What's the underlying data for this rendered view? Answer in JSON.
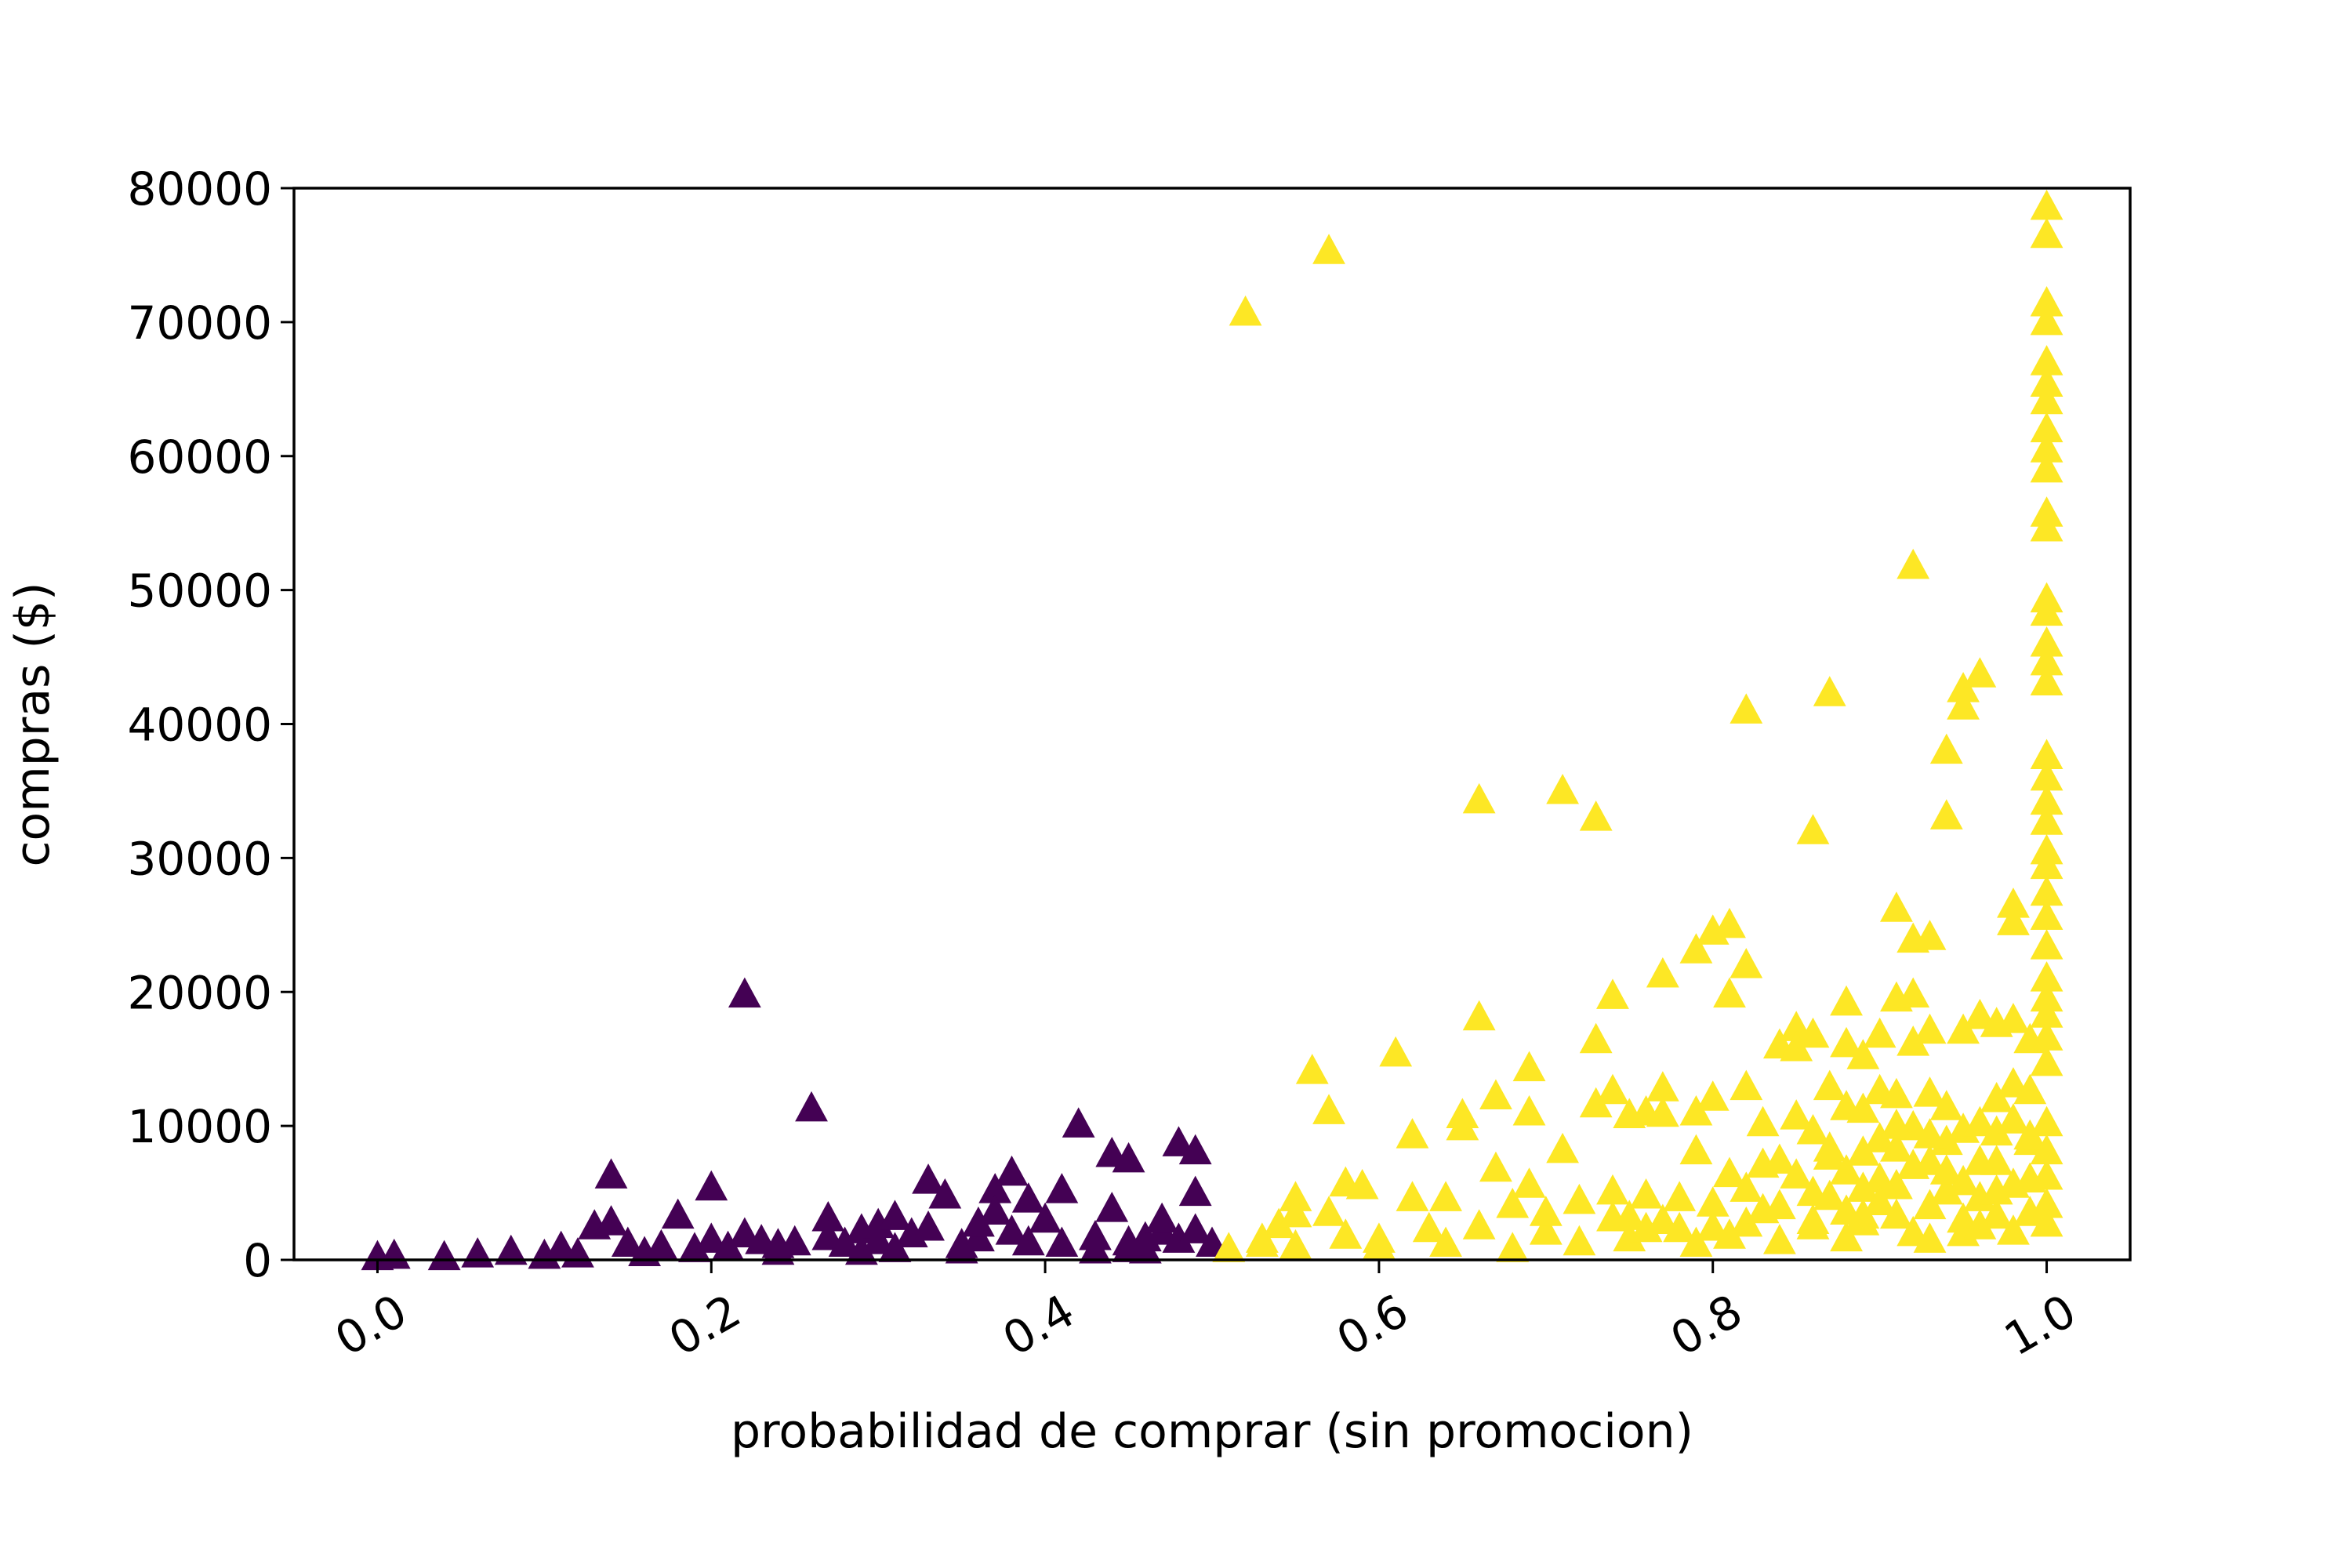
{
  "chart_data": {
    "type": "scatter",
    "title": "",
    "xlabel": "probabilidad de comprar (sin promocion)",
    "ylabel": "compras ($)",
    "xlim": [
      -0.05,
      1.05
    ],
    "ylim": [
      0,
      80000
    ],
    "xticks": [
      "0.0",
      "0.2",
      "0.4",
      "0.6",
      "0.8",
      "1.0"
    ],
    "yticks": [
      "0",
      "10000",
      "20000",
      "30000",
      "40000",
      "50000",
      "60000",
      "70000",
      "80000"
    ],
    "grid": false,
    "legend": "none",
    "marker": "triangle",
    "colors": {
      "low": "#440154",
      "high": "#fde725"
    },
    "series": [
      {
        "color": "#440154",
        "points": [
          [
            0.0,
            200
          ],
          [
            0.01,
            300
          ],
          [
            0.04,
            200
          ],
          [
            0.06,
            400
          ],
          [
            0.08,
            600
          ],
          [
            0.1,
            300
          ],
          [
            0.11,
            900
          ],
          [
            0.12,
            400
          ],
          [
            0.13,
            2500
          ],
          [
            0.14,
            6300
          ],
          [
            0.14,
            2800
          ],
          [
            0.15,
            1200
          ],
          [
            0.16,
            500
          ],
          [
            0.17,
            1000
          ],
          [
            0.18,
            3300
          ],
          [
            0.19,
            800
          ],
          [
            0.2,
            5400
          ],
          [
            0.2,
            1500
          ],
          [
            0.21,
            900
          ],
          [
            0.22,
            19800
          ],
          [
            0.22,
            1900
          ],
          [
            0.23,
            1400
          ],
          [
            0.24,
            1100
          ],
          [
            0.25,
            1300
          ],
          [
            0.26,
            11300
          ],
          [
            0.27,
            3100
          ],
          [
            0.27,
            1700
          ],
          [
            0.28,
            1200
          ],
          [
            0.29,
            2200
          ],
          [
            0.3,
            2600
          ],
          [
            0.31,
            3200
          ],
          [
            0.32,
            1900
          ],
          [
            0.33,
            5900
          ],
          [
            0.33,
            2400
          ],
          [
            0.34,
            4800
          ],
          [
            0.35,
            1100
          ],
          [
            0.36,
            1600
          ],
          [
            0.37,
            5200
          ],
          [
            0.37,
            3600
          ],
          [
            0.38,
            6500
          ],
          [
            0.38,
            2100
          ],
          [
            0.39,
            4500
          ],
          [
            0.4,
            3000
          ],
          [
            0.41,
            5200
          ],
          [
            0.41,
            1200
          ],
          [
            0.42,
            10100
          ],
          [
            0.43,
            700
          ],
          [
            0.44,
            7900
          ],
          [
            0.44,
            3800
          ],
          [
            0.45,
            7500
          ],
          [
            0.45,
            800
          ],
          [
            0.46,
            1600
          ],
          [
            0.47,
            2100
          ],
          [
            0.47,
            3000
          ],
          [
            0.48,
            8700
          ],
          [
            0.48,
            1500
          ],
          [
            0.49,
            8100
          ],
          [
            0.49,
            5000
          ],
          [
            0.49,
            2200
          ],
          [
            0.5,
            1200
          ],
          [
            0.35,
            700
          ],
          [
            0.31,
            800
          ],
          [
            0.29,
            600
          ],
          [
            0.39,
            1300
          ],
          [
            0.43,
            1700
          ],
          [
            0.46,
            700
          ],
          [
            0.24,
            600
          ],
          [
            0.3,
            1400
          ],
          [
            0.36,
            2700
          ],
          [
            0.45,
            1300
          ]
        ]
      },
      {
        "color": "#fde725",
        "points": [
          [
            0.52,
            70700
          ],
          [
            0.57,
            75300
          ],
          [
            0.51,
            800
          ],
          [
            0.53,
            1500
          ],
          [
            0.54,
            2600
          ],
          [
            0.55,
            4600
          ],
          [
            0.55,
            1000
          ],
          [
            0.56,
            14100
          ],
          [
            0.57,
            11100
          ],
          [
            0.57,
            3500
          ],
          [
            0.58,
            5700
          ],
          [
            0.59,
            5500
          ],
          [
            0.6,
            1500
          ],
          [
            0.61,
            15400
          ],
          [
            0.62,
            9300
          ],
          [
            0.62,
            4600
          ],
          [
            0.63,
            2300
          ],
          [
            0.64,
            4600
          ],
          [
            0.65,
            10800
          ],
          [
            0.65,
            9900
          ],
          [
            0.66,
            34300
          ],
          [
            0.66,
            18100
          ],
          [
            0.67,
            12200
          ],
          [
            0.67,
            6800
          ],
          [
            0.68,
            4100
          ],
          [
            0.69,
            14300
          ],
          [
            0.69,
            11000
          ],
          [
            0.69,
            5600
          ],
          [
            0.7,
            2100
          ],
          [
            0.71,
            35000
          ],
          [
            0.71,
            8200
          ],
          [
            0.72,
            4400
          ],
          [
            0.73,
            33000
          ],
          [
            0.73,
            16400
          ],
          [
            0.73,
            11600
          ],
          [
            0.74,
            19700
          ],
          [
            0.74,
            12600
          ],
          [
            0.74,
            5100
          ],
          [
            0.75,
            10800
          ],
          [
            0.75,
            3200
          ],
          [
            0.76,
            11000
          ],
          [
            0.76,
            4800
          ],
          [
            0.77,
            21300
          ],
          [
            0.77,
            12800
          ],
          [
            0.77,
            10900
          ],
          [
            0.78,
            2300
          ],
          [
            0.79,
            23100
          ],
          [
            0.79,
            11000
          ],
          [
            0.79,
            8100
          ],
          [
            0.8,
            24500
          ],
          [
            0.8,
            12100
          ],
          [
            0.8,
            4200
          ],
          [
            0.81,
            25000
          ],
          [
            0.81,
            19800
          ],
          [
            0.81,
            6400
          ],
          [
            0.82,
            41000
          ],
          [
            0.82,
            22000
          ],
          [
            0.82,
            12900
          ],
          [
            0.82,
            2700
          ],
          [
            0.83,
            10200
          ],
          [
            0.83,
            7100
          ],
          [
            0.84,
            16000
          ],
          [
            0.84,
            4000
          ],
          [
            0.85,
            17300
          ],
          [
            0.85,
            15800
          ],
          [
            0.85,
            10700
          ],
          [
            0.86,
            32000
          ],
          [
            0.86,
            16800
          ],
          [
            0.86,
            9600
          ],
          [
            0.86,
            5000
          ],
          [
            0.87,
            42300
          ],
          [
            0.87,
            12900
          ],
          [
            0.87,
            8300
          ],
          [
            0.88,
            19200
          ],
          [
            0.88,
            16100
          ],
          [
            0.88,
            11400
          ],
          [
            0.88,
            6600
          ],
          [
            0.89,
            15200
          ],
          [
            0.89,
            8000
          ],
          [
            0.89,
            2800
          ],
          [
            0.9,
            16800
          ],
          [
            0.9,
            12600
          ],
          [
            0.9,
            9000
          ],
          [
            0.91,
            26200
          ],
          [
            0.91,
            19500
          ],
          [
            0.91,
            12300
          ],
          [
            0.91,
            5500
          ],
          [
            0.92,
            51800
          ],
          [
            0.92,
            23900
          ],
          [
            0.92,
            19800
          ],
          [
            0.92,
            16200
          ],
          [
            0.92,
            9900
          ],
          [
            0.93,
            24100
          ],
          [
            0.93,
            17100
          ],
          [
            0.93,
            12400
          ],
          [
            0.93,
            7300
          ],
          [
            0.94,
            38000
          ],
          [
            0.94,
            33100
          ],
          [
            0.94,
            11400
          ],
          [
            0.94,
            5100
          ],
          [
            0.95,
            42600
          ],
          [
            0.95,
            41300
          ],
          [
            0.95,
            17100
          ],
          [
            0.95,
            9700
          ],
          [
            0.96,
            43700
          ],
          [
            0.96,
            18200
          ],
          [
            0.96,
            10200
          ],
          [
            0.96,
            4600
          ],
          [
            0.97,
            17600
          ],
          [
            0.97,
            12000
          ],
          [
            0.97,
            7300
          ],
          [
            0.98,
            26500
          ],
          [
            0.98,
            25200
          ],
          [
            0.98,
            17900
          ],
          [
            0.98,
            13100
          ],
          [
            0.99,
            16400
          ],
          [
            0.99,
            12600
          ],
          [
            0.99,
            8800
          ],
          [
            0.99,
            3500
          ],
          [
            1.0,
            78600
          ],
          [
            1.0,
            76500
          ],
          [
            1.0,
            71400
          ],
          [
            1.0,
            70000
          ],
          [
            1.0,
            67000
          ],
          [
            1.0,
            65400
          ],
          [
            1.0,
            64100
          ],
          [
            1.0,
            62000
          ],
          [
            1.0,
            60500
          ],
          [
            1.0,
            59000
          ],
          [
            1.0,
            55700
          ],
          [
            1.0,
            54600
          ],
          [
            1.0,
            49300
          ],
          [
            1.0,
            48300
          ],
          [
            1.0,
            46000
          ],
          [
            1.0,
            44600
          ],
          [
            1.0,
            43100
          ],
          [
            1.0,
            37600
          ],
          [
            1.0,
            36000
          ],
          [
            1.0,
            34200
          ],
          [
            1.0,
            32700
          ],
          [
            1.0,
            30500
          ],
          [
            1.0,
            29400
          ],
          [
            1.0,
            27400
          ],
          [
            1.0,
            25600
          ],
          [
            1.0,
            23400
          ],
          [
            1.0,
            21000
          ],
          [
            1.0,
            19500
          ],
          [
            1.0,
            18300
          ],
          [
            1.0,
            16600
          ],
          [
            1.0,
            14700
          ],
          [
            1.0,
            10200
          ],
          [
            1.0,
            8100
          ],
          [
            1.0,
            6200
          ],
          [
            1.0,
            4100
          ],
          [
            1.0,
            2700
          ],
          [
            0.84,
            1400
          ],
          [
            0.86,
            2500
          ],
          [
            0.88,
            3600
          ],
          [
            0.89,
            5300
          ],
          [
            0.9,
            6000
          ],
          [
            0.91,
            3300
          ],
          [
            0.92,
            2000
          ],
          [
            0.93,
            4000
          ],
          [
            0.94,
            6600
          ],
          [
            0.95,
            3000
          ],
          [
            0.96,
            7300
          ],
          [
            0.97,
            3300
          ],
          [
            0.98,
            5600
          ],
          [
            0.99,
            6000
          ],
          [
            0.97,
            9500
          ],
          [
            0.98,
            10400
          ],
          [
            0.95,
            2000
          ],
          [
            0.93,
            1500
          ],
          [
            0.91,
            8300
          ],
          [
            0.89,
            11200
          ],
          [
            0.87,
            4700
          ],
          [
            0.85,
            6300
          ],
          [
            0.83,
            3700
          ],
          [
            0.81,
            1800
          ],
          [
            0.79,
            1200
          ],
          [
            0.77,
            2900
          ],
          [
            0.75,
            1600
          ],
          [
            0.72,
            1300
          ],
          [
            0.7,
            3500
          ],
          [
            0.68,
            800
          ],
          [
            0.66,
            2500
          ],
          [
            0.64,
            1200
          ],
          [
            0.6,
            1000
          ],
          [
            0.58,
            1800
          ],
          [
            0.55,
            3400
          ],
          [
            0.53,
            1200
          ],
          [
            0.96,
            2500
          ],
          [
            0.94,
            8800
          ],
          [
            0.92,
            7000
          ],
          [
            0.9,
            4300
          ],
          [
            0.88,
            1600
          ],
          [
            0.86,
            2900
          ],
          [
            0.84,
            7400
          ],
          [
            0.82,
            5300
          ],
          [
            0.8,
            2400
          ],
          [
            0.78,
            4600
          ],
          [
            0.76,
            2300
          ],
          [
            0.74,
            3100
          ],
          [
            0.97,
            5100
          ],
          [
            0.99,
            9200
          ],
          [
            0.98,
            2100
          ],
          [
            0.95,
            5800
          ],
          [
            0.93,
            9300
          ],
          [
            0.91,
            10000
          ],
          [
            0.89,
            3300
          ],
          [
            0.87,
            7700
          ]
        ]
      }
    ]
  }
}
